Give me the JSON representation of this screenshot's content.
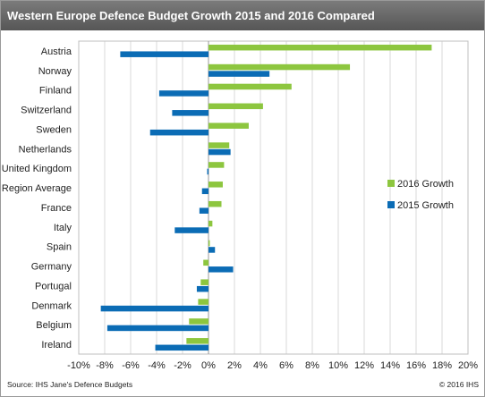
{
  "title": "Western Europe Defence Budget Growth 2015 and 2016 Compared",
  "source": "Source: IHS Jane's Defence Budgets",
  "copyright": "© 2016 IHS",
  "colors": {
    "series_2016": "#8dc63f",
    "series_2015": "#0b6cb5",
    "title_bg": "#666666",
    "grid": "#d9d9d9"
  },
  "chart_data": {
    "type": "bar",
    "orientation": "horizontal",
    "categories": [
      "Austria",
      "Norway",
      "Finland",
      "Switzerland",
      "Sweden",
      "Netherlands",
      "United Kingdom",
      "Region Average",
      "France",
      "Italy",
      "Spain",
      "Germany",
      "Portugal",
      "Denmark",
      "Belgium",
      "Ireland"
    ],
    "series": [
      {
        "name": "2016 Growth",
        "color": "#8dc63f",
        "values": [
          17.2,
          10.9,
          6.4,
          4.2,
          3.1,
          1.6,
          1.2,
          1.1,
          1.0,
          0.3,
          0.1,
          -0.4,
          -0.6,
          -0.8,
          -1.5,
          -1.7
        ]
      },
      {
        "name": "2015 Growth",
        "color": "#0b6cb5",
        "values": [
          -6.8,
          4.7,
          -3.8,
          -2.8,
          -4.5,
          1.7,
          -0.1,
          -0.5,
          -0.7,
          -2.6,
          0.5,
          1.9,
          -0.9,
          -8.3,
          -7.8,
          -4.1
        ]
      }
    ],
    "xlim": [
      -10,
      20
    ],
    "xticks": [
      -10,
      -8,
      -6,
      -4,
      -2,
      0,
      2,
      4,
      6,
      8,
      10,
      12,
      14,
      16,
      18,
      20
    ],
    "xtick_labels": [
      "-10%",
      "-8%",
      "-6%",
      "-4%",
      "-2%",
      "0%",
      "2%",
      "4%",
      "6%",
      "8%",
      "10%",
      "12%",
      "14%",
      "16%",
      "18%",
      "20%"
    ],
    "grid": true,
    "legend_position": "right"
  }
}
